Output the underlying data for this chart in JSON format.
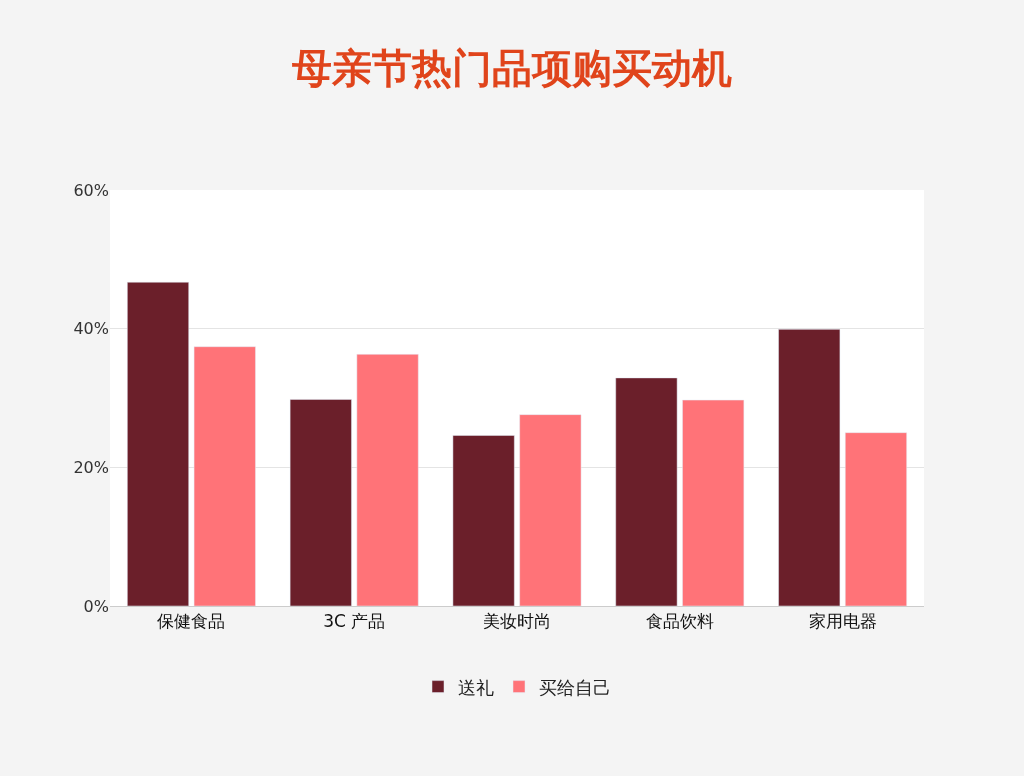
{
  "chart_data": {
    "type": "bar",
    "title": "母亲节热门品项购买动机",
    "categories": [
      "保健食品",
      "3C 产品",
      "美妆时尚",
      "食品饮料",
      "家用电器"
    ],
    "series": [
      {
        "name": "送礼",
        "color": "#6b1f2a",
        "values": [
          46.7,
          29.8,
          24.6,
          32.9,
          39.9
        ]
      },
      {
        "name": "买给自己",
        "color": "#ff7378",
        "values": [
          37.4,
          36.3,
          27.6,
          29.7,
          25
        ]
      }
    ],
    "ylim": [
      0,
      60
    ],
    "yticks": [
      {
        "value": 0,
        "label": "0%"
      },
      {
        "value": 20,
        "label": "20%"
      },
      {
        "value": 40,
        "label": "40%"
      },
      {
        "value": 60,
        "label": "60%"
      }
    ],
    "grid": "y",
    "legend": "bottom"
  }
}
